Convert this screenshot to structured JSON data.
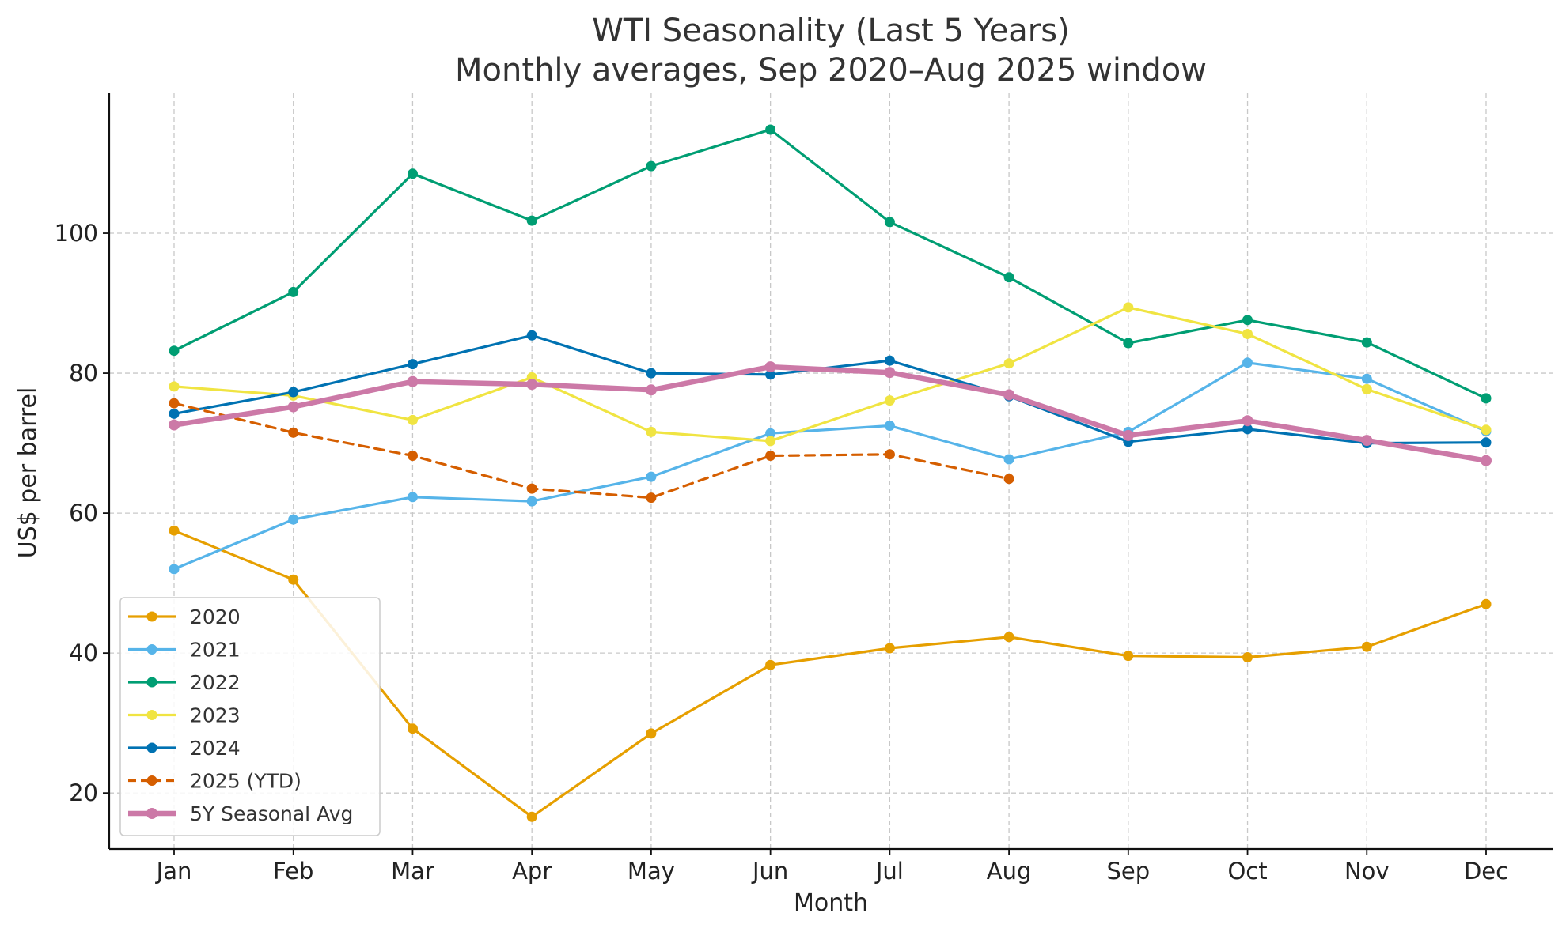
{
  "chart_data": {
    "type": "line",
    "title": "WTI Seasonality (Last 5 Years)",
    "subtitle": "Monthly averages, Sep 2020–Aug 2025 window",
    "xlabel": "Month",
    "ylabel": "US$ per barrel",
    "categories": [
      "Jan",
      "Feb",
      "Mar",
      "Apr",
      "May",
      "Jun",
      "Jul",
      "Aug",
      "Sep",
      "Oct",
      "Nov",
      "Dec"
    ],
    "ylim": [
      12,
      120
    ],
    "yticks": [
      20,
      40,
      60,
      80,
      100
    ],
    "grid": true,
    "legend_position": "lower-left",
    "series": [
      {
        "name": "2020",
        "color": "#E69F00",
        "style": "solid",
        "width": "normal",
        "values": [
          57.5,
          50.5,
          29.2,
          16.6,
          28.5,
          38.3,
          40.7,
          42.3,
          39.6,
          39.4,
          40.9,
          47.0
        ]
      },
      {
        "name": "2021",
        "color": "#56B4E9",
        "style": "solid",
        "width": "normal",
        "values": [
          52.0,
          59.1,
          62.3,
          61.7,
          65.2,
          71.4,
          72.5,
          67.7,
          71.6,
          81.5,
          79.2,
          71.7
        ]
      },
      {
        "name": "2022",
        "color": "#009E73",
        "style": "solid",
        "width": "normal",
        "values": [
          83.2,
          91.6,
          108.5,
          101.8,
          109.6,
          114.8,
          101.6,
          93.7,
          84.3,
          87.6,
          84.4,
          76.4
        ]
      },
      {
        "name": "2023",
        "color": "#F0E442",
        "style": "solid",
        "width": "normal",
        "values": [
          78.1,
          76.8,
          73.3,
          79.4,
          71.6,
          70.3,
          76.1,
          81.4,
          89.4,
          85.6,
          77.7,
          71.9
        ]
      },
      {
        "name": "2024",
        "color": "#0072B2",
        "style": "solid",
        "width": "normal",
        "values": [
          74.2,
          77.3,
          81.3,
          85.4,
          80.0,
          79.8,
          81.8,
          76.7,
          70.2,
          72.0,
          70.0,
          70.1
        ]
      },
      {
        "name": "2025 (YTD)",
        "color": "#D55E00",
        "style": "dashed",
        "width": "normal",
        "values": [
          75.7,
          71.5,
          68.2,
          63.5,
          62.2,
          68.2,
          68.4,
          64.9,
          null,
          null,
          null,
          null
        ]
      },
      {
        "name": "5Y Seasonal Avg",
        "color": "#CC79A7",
        "style": "solid",
        "width": "thick",
        "values": [
          72.6,
          75.2,
          78.8,
          78.4,
          77.6,
          80.9,
          80.1,
          76.9,
          71.1,
          73.2,
          70.4,
          67.5
        ]
      }
    ]
  }
}
